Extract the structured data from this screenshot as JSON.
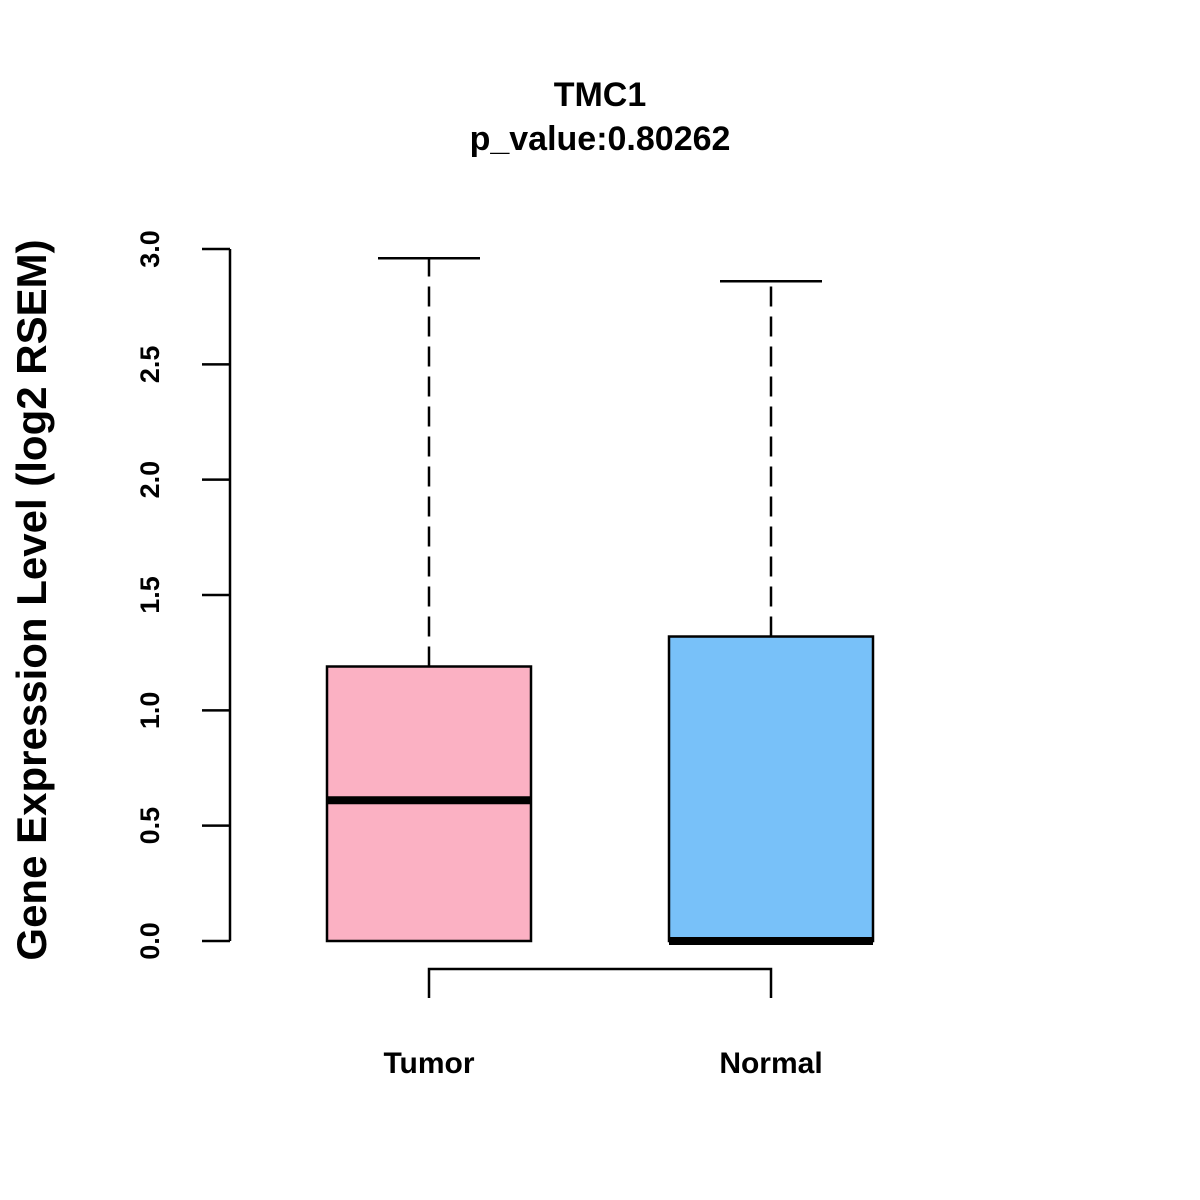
{
  "chart_data": {
    "type": "boxplot",
    "title": "TMC1",
    "subtitle": "p_value:0.80262",
    "ylabel": "Gene Expression Level (log2 RSEM)",
    "xlabel": "",
    "ylim": [
      0,
      3.0
    ],
    "yticks": [
      "0.0",
      "0.5",
      "1.0",
      "1.5",
      "2.0",
      "2.5",
      "3.0"
    ],
    "categories": [
      "Tumor",
      "Normal"
    ],
    "series": [
      {
        "name": "Tumor",
        "min": 0.0,
        "q1": 0.0,
        "median": 0.61,
        "q3": 1.19,
        "max": 2.96,
        "color": "#FBB1C3"
      },
      {
        "name": "Normal",
        "min": 0.0,
        "q1": 0.0,
        "median": 0.0,
        "q3": 1.32,
        "max": 2.86,
        "color": "#78C1F9"
      }
    ],
    "comparison_bracket": [
      "Tumor",
      "Normal"
    ],
    "grid": false,
    "legend": "none"
  }
}
